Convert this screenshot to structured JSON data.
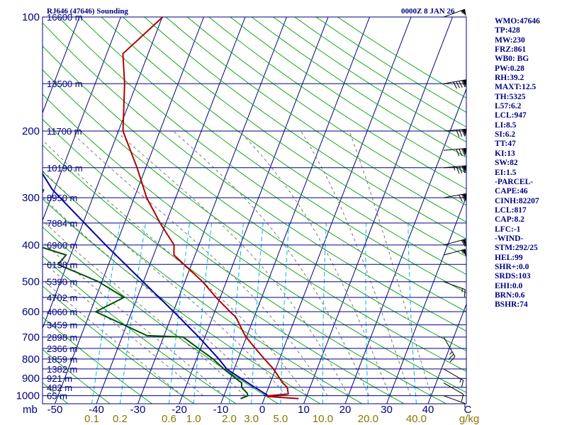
{
  "header": {
    "station": "RJ646 (47646) Sounding",
    "time": "0000Z  8 JAN 26"
  },
  "indices": [
    "WMO:47646",
    "TP:428",
    "MW:230",
    "FRZ:861",
    "WB0: BG",
    "PW:0.28",
    "RH:39.2",
    "MAXT:12.5",
    "TH:5325",
    "L57:6.2",
    "LCL:947",
    "LI:8.5",
    "SI:6.2",
    "TT:47",
    "KI:13",
    "SW:82",
    "EI:1.5",
    "-PARCEL-",
    "CAPE:46",
    "CINH:82207",
    "LCL:817",
    "CAP:8.2",
    "LFC:-1",
    "-WIND-",
    "STM:292/25",
    "HEL:99",
    "SHR+:0.0",
    "SRDS:103",
    "EHI:0.0",
    "BRN:0.6",
    "BSHR:74"
  ],
  "colors": {
    "isobar": "#000080",
    "isotherm": "#000080",
    "dry_adiabat": "#00a000",
    "moist_adiabat": "#6a6a6a",
    "mixing_ratio": "#00b8e8",
    "temperature": "#b00000",
    "dewpoint": "#005000",
    "parcel": "#0000b0",
    "wind_barb": "#000000"
  },
  "chart_data": {
    "type": "skew-t log-p",
    "pressure_axis_label": "mb",
    "pressure_levels": [
      100,
      200,
      300,
      400,
      500,
      600,
      700,
      800,
      900,
      1000
    ],
    "height_labels": [
      {
        "p": 100,
        "label": "16600 m"
      },
      {
        "p": 150,
        "label": "13500 m"
      },
      {
        "p": 200,
        "label": "11700 m"
      },
      {
        "p": 250,
        "label": "10190 m"
      },
      {
        "p": 300,
        "label": "8950 m"
      },
      {
        "p": 350,
        "label": "7884 m"
      },
      {
        "p": 400,
        "label": "6960 m"
      },
      {
        "p": 450,
        "label": "6138 m"
      },
      {
        "p": 500,
        "label": "5390 m"
      },
      {
        "p": 550,
        "label": "4702 m"
      },
      {
        "p": 600,
        "label": "4060 m"
      },
      {
        "p": 650,
        "label": "3459 m"
      },
      {
        "p": 700,
        "label": "2898 m"
      },
      {
        "p": 750,
        "label": "2366 m"
      },
      {
        "p": 800,
        "label": "1859 m"
      },
      {
        "p": 850,
        "label": "1382 m"
      },
      {
        "p": 900,
        "label": "921 m"
      },
      {
        "p": 950,
        "label": "482 m"
      },
      {
        "p": 1000,
        "label": "65 m"
      }
    ],
    "temperature_ticks": [
      -50,
      -40,
      -30,
      -20,
      -10,
      0,
      10,
      20,
      30,
      40
    ],
    "temperature_tick_labels": [
      "-50",
      "-40",
      "-30",
      "-20",
      "-10",
      "0",
      "10",
      "20",
      "30",
      "40"
    ],
    "mixing_ratio_labels": [
      "0.1",
      "0.2",
      "0.6",
      "1.0",
      "2.0",
      "3.0",
      "5.0",
      "10.0",
      "20.0",
      "40.0"
    ],
    "mixing_ratio_values": [
      0.1,
      0.2,
      0.6,
      1.0,
      2.0,
      3.0,
      5.0,
      10.0,
      20.0,
      40.0
    ],
    "mixing_ratio_unit": "g/kg",
    "corner_label": "C",
    "temperature_profile": [
      {
        "p": 1018,
        "t": 8.3
      },
      {
        "p": 1005,
        "t": 0.7
      },
      {
        "p": 1000,
        "t": 0.6
      },
      {
        "p": 990,
        "t": 5.4
      },
      {
        "p": 950,
        "t": 4.5
      },
      {
        "p": 925,
        "t": 3.0
      },
      {
        "p": 850,
        "t": -0.5
      },
      {
        "p": 800,
        "t": -3.6
      },
      {
        "p": 750,
        "t": -6.8
      },
      {
        "p": 700,
        "t": -10.1
      },
      {
        "p": 680,
        "t": -11.2
      },
      {
        "p": 620,
        "t": -14.4
      },
      {
        "p": 600,
        "t": -16.3
      },
      {
        "p": 550,
        "t": -21.0
      },
      {
        "p": 500,
        "t": -25.7
      },
      {
        "p": 450,
        "t": -31.8
      },
      {
        "p": 425,
        "t": -35.1
      },
      {
        "p": 400,
        "t": -36.0
      },
      {
        "p": 350,
        "t": -41.4
      },
      {
        "p": 300,
        "t": -47.0
      },
      {
        "p": 250,
        "t": -52.1
      },
      {
        "p": 200,
        "t": -58.9
      },
      {
        "p": 150,
        "t": -62.9
      },
      {
        "p": 125,
        "t": -66.1
      },
      {
        "p": 100,
        "t": -59.9
      }
    ],
    "dewpoint_profile": [
      {
        "p": 1018,
        "t": -5.7
      },
      {
        "p": 1000,
        "t": -4.2
      },
      {
        "p": 985,
        "t": -4.6
      },
      {
        "p": 950,
        "t": -6.5
      },
      {
        "p": 925,
        "t": -6.9
      },
      {
        "p": 850,
        "t": -12.5
      },
      {
        "p": 800,
        "t": -16.0
      },
      {
        "p": 750,
        "t": -20.5
      },
      {
        "p": 700,
        "t": -25.3
      },
      {
        "p": 694,
        "t": -34.1
      },
      {
        "p": 600,
        "t": -48.7
      },
      {
        "p": 550,
        "t": -43.2
      },
      {
        "p": 500,
        "t": -50.8
      },
      {
        "p": 450,
        "t": -62.2
      },
      {
        "p": 425,
        "t": -61.1
      },
      {
        "p": 400,
        "t": -69.6
      },
      {
        "p": 385,
        "t": -71.1
      },
      {
        "p": 300,
        "t": -72.7
      },
      {
        "p": 285,
        "t": -72.6
      }
    ],
    "parcel_profile": [
      {
        "p": 1010,
        "t": 3.9
      },
      {
        "p": 1000,
        "t": 0.7
      },
      {
        "p": 950,
        "t": -3.3
      },
      {
        "p": 900,
        "t": -7.5
      },
      {
        "p": 850,
        "t": -11.8
      },
      {
        "p": 800,
        "t": -14.6
      },
      {
        "p": 700,
        "t": -21.5
      },
      {
        "p": 600,
        "t": -29.9
      },
      {
        "p": 500,
        "t": -40.1
      },
      {
        "p": 400,
        "t": -52.5
      },
      {
        "p": 300,
        "t": -67.9
      },
      {
        "p": 285,
        "t": -70.6
      },
      {
        "p": 250,
        "t": -75.8
      },
      {
        "p": 200,
        "t": -84.8
      },
      {
        "p": 150,
        "t": -96.3
      },
      {
        "p": 100,
        "t": -112.2
      }
    ],
    "wind_barbs": [
      {
        "p": 100,
        "dir": 250,
        "kt": 55
      },
      {
        "p": 150,
        "dir": 260,
        "kt": 90
      },
      {
        "p": 200,
        "dir": 265,
        "kt": 80
      },
      {
        "p": 225,
        "dir": 265,
        "kt": 80
      },
      {
        "p": 250,
        "dir": 265,
        "kt": 85
      },
      {
        "p": 300,
        "dir": 260,
        "kt": 70
      },
      {
        "p": 400,
        "dir": 255,
        "kt": 60
      },
      {
        "p": 425,
        "dir": 255,
        "kt": 55
      },
      {
        "p": 500,
        "dir": 290,
        "kt": 15
      },
      {
        "p": 700,
        "dir": 330,
        "kt": 25
      },
      {
        "p": 850,
        "dir": 300,
        "kt": 15
      },
      {
        "p": 925,
        "dir": 300,
        "kt": 10
      },
      {
        "p": 1000,
        "dir": 290,
        "kt": 5
      }
    ]
  }
}
